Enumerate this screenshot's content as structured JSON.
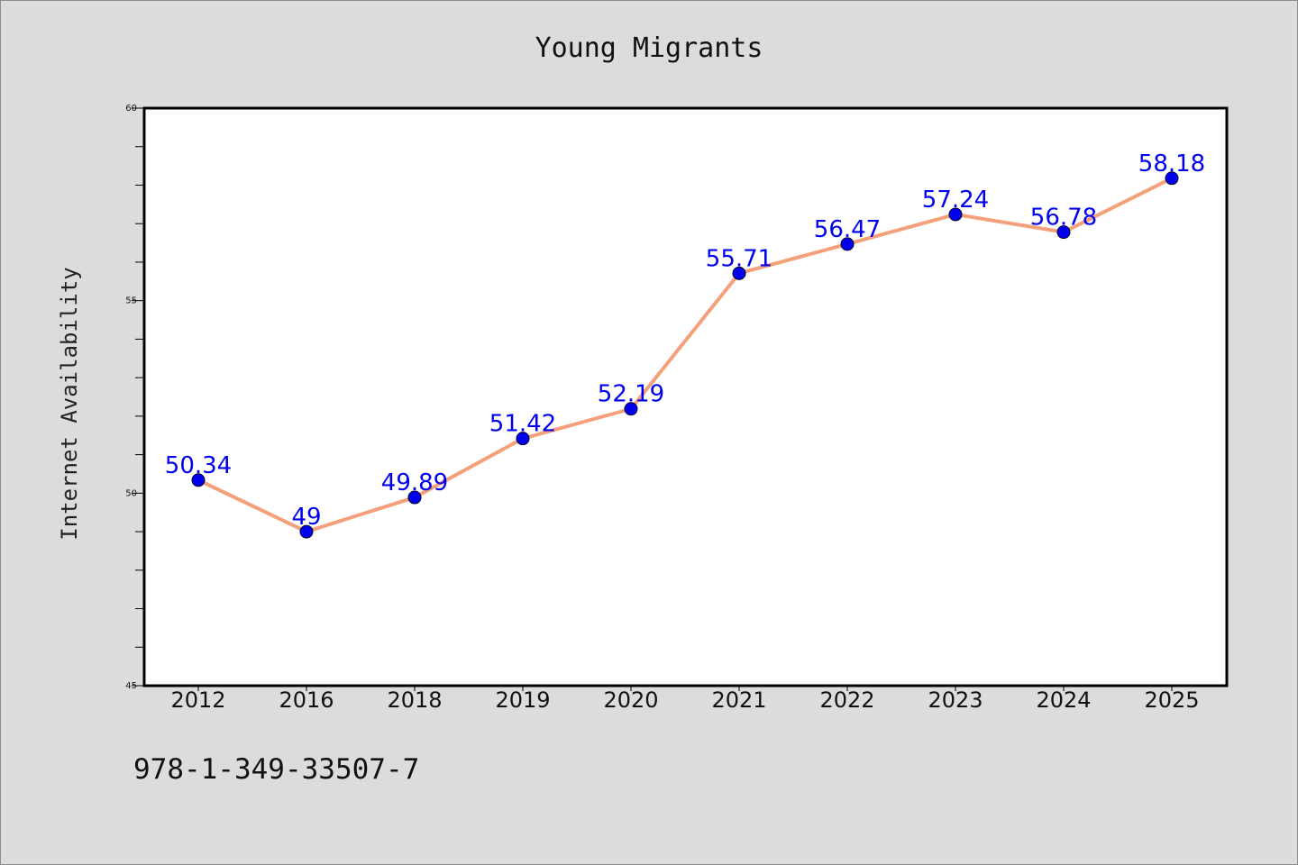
{
  "chart_data": {
    "type": "line",
    "title": "Young Migrants",
    "xlabel": "",
    "ylabel": "Internet Availability",
    "categories": [
      "2012",
      "2016",
      "2018",
      "2019",
      "2020",
      "2021",
      "2022",
      "2023",
      "2024",
      "2025"
    ],
    "series": [
      {
        "values": [
          50.34,
          49,
          49.89,
          51.42,
          52.19,
          55.71,
          56.47,
          57.24,
          56.78,
          58.18
        ],
        "data_labels": [
          "50.34",
          "49",
          "49.89",
          "51.42",
          "52.19",
          "55.71",
          "56.47",
          "57.24",
          "56.78",
          "58.18"
        ]
      }
    ],
    "ylim": [
      45,
      60
    ],
    "yticks": [
      "45",
      "50",
      "55",
      "60"
    ],
    "grid": false,
    "legend": "none",
    "colors": {
      "line": "#f4a07a",
      "marker": "#0000ee",
      "data_label": "#0000ee",
      "plot_background": "#ffffff",
      "page_background": "#dcdcdc"
    }
  },
  "footer": {
    "isbn": "978-1-349-33507-7"
  }
}
